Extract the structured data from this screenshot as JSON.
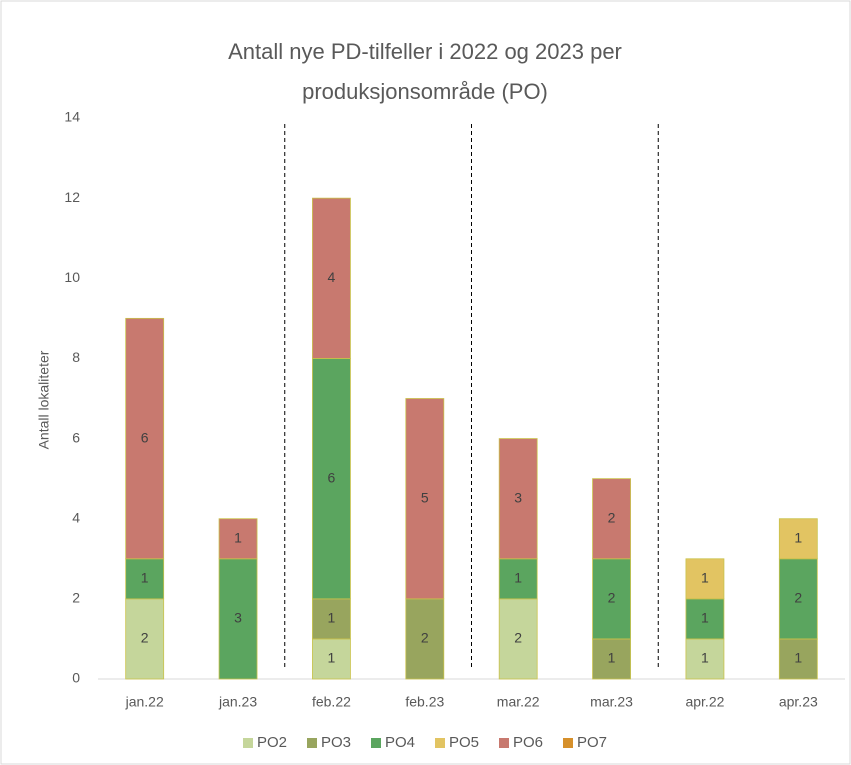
{
  "chart_data": {
    "type": "stacked_bar",
    "title": "Antall nye PD-tilfeller i 2022 og 2023  per produksjonsområde (PO)",
    "y_label": "Antall lokaliteter",
    "categories": [
      "jan.22",
      "jan.23",
      "feb.22",
      "feb.23",
      "mar.22",
      "mar.23",
      "apr.22",
      "apr.23"
    ],
    "series": [
      {
        "name": "PO2",
        "color": "#c5d69b",
        "values": [
          2,
          null,
          1,
          null,
          2,
          null,
          1,
          null
        ]
      },
      {
        "name": "PO3",
        "color": "#98a55e",
        "values": [
          null,
          null,
          1,
          2,
          null,
          1,
          null,
          1
        ]
      },
      {
        "name": "PO4",
        "color": "#5ba55f",
        "values": [
          1,
          3,
          6,
          null,
          1,
          2,
          1,
          2
        ]
      },
      {
        "name": "PO5",
        "color": "#e2c462",
        "values": [
          null,
          null,
          null,
          null,
          null,
          null,
          1,
          1
        ]
      },
      {
        "name": "PO6",
        "color": "#c8796f",
        "values": [
          6,
          1,
          4,
          5,
          3,
          2,
          null,
          null
        ]
      },
      {
        "name": "PO7",
        "color": "#d6902b",
        "values": [
          null,
          null,
          null,
          null,
          null,
          null,
          null,
          null
        ]
      }
    ],
    "ylim": [
      0,
      14
    ],
    "yticks": [
      0,
      2,
      4,
      6,
      8,
      10,
      12,
      14
    ],
    "grid": false,
    "legend": "bottom"
  }
}
